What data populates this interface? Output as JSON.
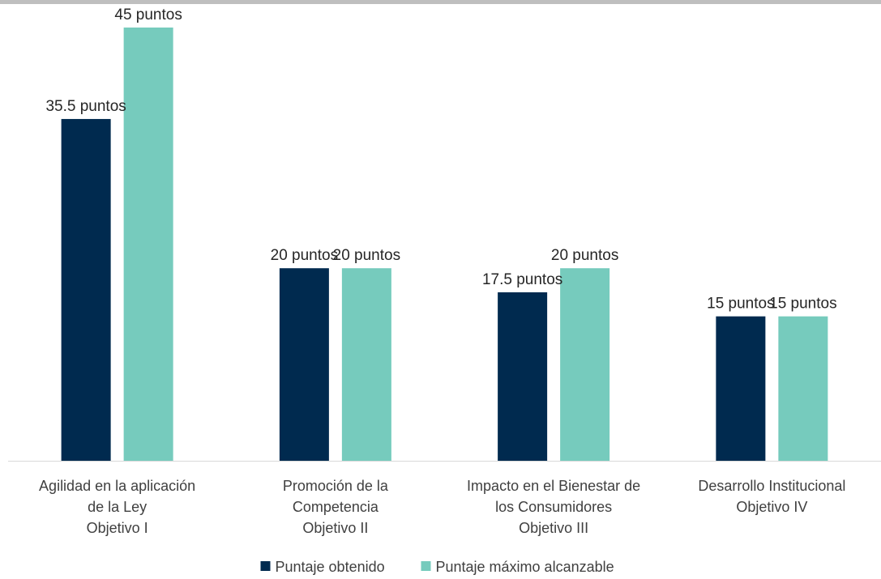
{
  "chart_data": {
    "type": "bar",
    "categories": [
      [
        "Agilidad en la aplicación",
        "de la Ley",
        "Objetivo I"
      ],
      [
        "Promoción de la",
        "Competencia",
        "Objetivo II"
      ],
      [
        "Impacto en el Bienestar de",
        "los Consumidores",
        "Objetivo III"
      ],
      [
        "Desarrollo Institucional",
        "Objetivo IV"
      ]
    ],
    "series": [
      {
        "name": "Puntaje obtenido",
        "color": "#002a4f",
        "values": [
          35.5,
          20,
          17.5,
          15
        ],
        "labels": [
          "35.5 puntos",
          "20 puntos",
          "17.5 puntos",
          "15 puntos"
        ]
      },
      {
        "name": "Puntaje máximo alcanzable",
        "color": "#76cbbd",
        "values": [
          45,
          20,
          20,
          15
        ],
        "labels": [
          "45 puntos",
          "20 puntos",
          "20 puntos",
          "15 puntos"
        ]
      }
    ],
    "ylim": [
      0,
      45
    ],
    "grid": false,
    "legend_position": "bottom",
    "title": "",
    "xlabel": "",
    "ylabel": ""
  }
}
